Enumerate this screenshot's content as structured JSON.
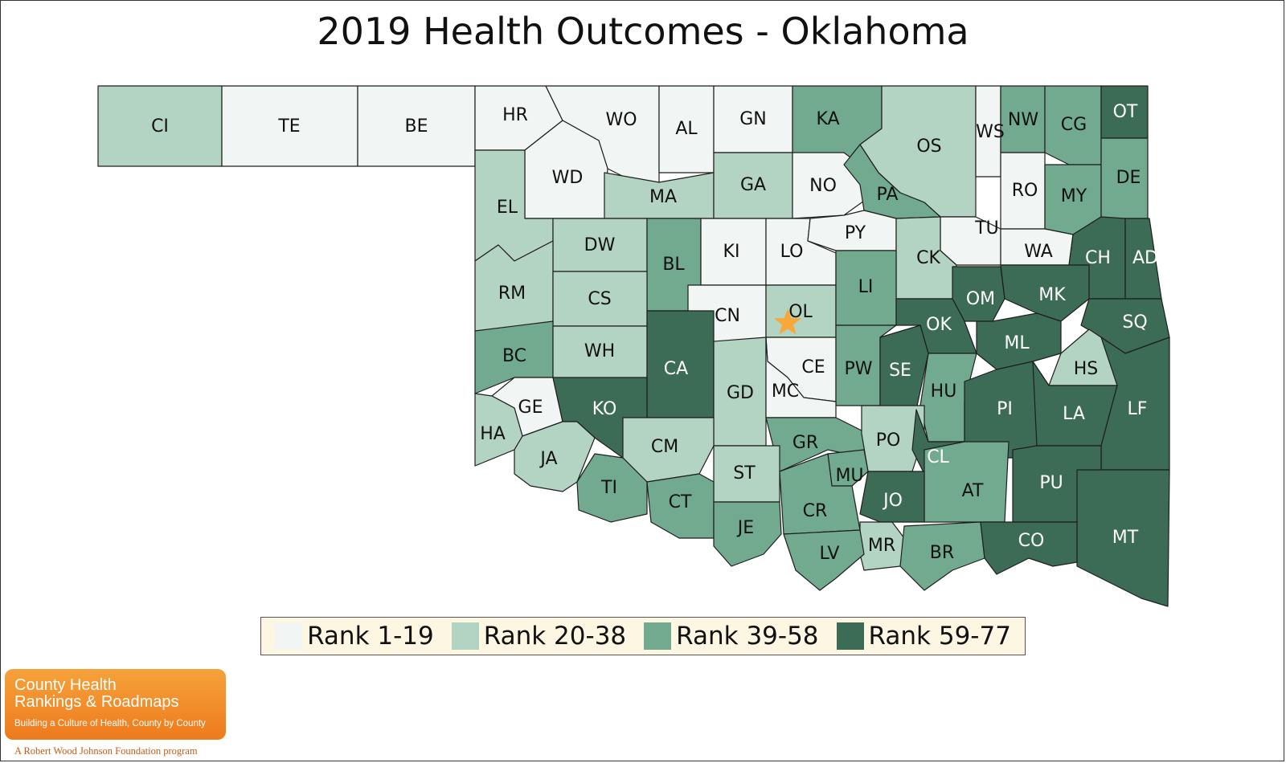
{
  "title": "2019 Health Outcomes - Oklahoma",
  "colors": {
    "rank_1_19": "#f1f5f3",
    "rank_20_38": "#b4d4c3",
    "rank_39_58": "#72aa8f",
    "rank_59_77": "#3c6b56",
    "star": "#f7a83a"
  },
  "legend": [
    {
      "label": "Rank 1-19",
      "color": "#f1f5f3"
    },
    {
      "label": "Rank 20-38",
      "color": "#b4d4c3"
    },
    {
      "label": "Rank 39-58",
      "color": "#72aa8f"
    },
    {
      "label": "Rank 59-77",
      "color": "#3c6b56"
    }
  ],
  "counties": [
    {
      "abbr": "CI",
      "rank_group": "20-38"
    },
    {
      "abbr": "TE",
      "rank_group": "1-19"
    },
    {
      "abbr": "BE",
      "rank_group": "1-19"
    },
    {
      "abbr": "HR",
      "rank_group": "1-19"
    },
    {
      "abbr": "WO",
      "rank_group": "1-19"
    },
    {
      "abbr": "AL",
      "rank_group": "1-19"
    },
    {
      "abbr": "GN",
      "rank_group": "1-19"
    },
    {
      "abbr": "KA",
      "rank_group": "39-58"
    },
    {
      "abbr": "OS",
      "rank_group": "20-38"
    },
    {
      "abbr": "WS",
      "rank_group": "1-19"
    },
    {
      "abbr": "NW",
      "rank_group": "39-58"
    },
    {
      "abbr": "CG",
      "rank_group": "39-58"
    },
    {
      "abbr": "OT",
      "rank_group": "59-77"
    },
    {
      "abbr": "WD",
      "rank_group": "1-19"
    },
    {
      "abbr": "MA",
      "rank_group": "20-38"
    },
    {
      "abbr": "GA",
      "rank_group": "20-38"
    },
    {
      "abbr": "NO",
      "rank_group": "1-19"
    },
    {
      "abbr": "PA",
      "rank_group": "39-58"
    },
    {
      "abbr": "RO",
      "rank_group": "1-19"
    },
    {
      "abbr": "MY",
      "rank_group": "39-58"
    },
    {
      "abbr": "DE",
      "rank_group": "39-58"
    },
    {
      "abbr": "EL",
      "rank_group": "20-38"
    },
    {
      "abbr": "DW",
      "rank_group": "20-38"
    },
    {
      "abbr": "BL",
      "rank_group": "39-58"
    },
    {
      "abbr": "KI",
      "rank_group": "1-19"
    },
    {
      "abbr": "LO",
      "rank_group": "1-19"
    },
    {
      "abbr": "PY",
      "rank_group": "1-19"
    },
    {
      "abbr": "TU",
      "rank_group": "1-19"
    },
    {
      "abbr": "WA",
      "rank_group": "1-19"
    },
    {
      "abbr": "CK",
      "rank_group": "20-38"
    },
    {
      "abbr": "CH",
      "rank_group": "59-77"
    },
    {
      "abbr": "AD",
      "rank_group": "59-77"
    },
    {
      "abbr": "RM",
      "rank_group": "20-38"
    },
    {
      "abbr": "CS",
      "rank_group": "20-38"
    },
    {
      "abbr": "CN",
      "rank_group": "1-19"
    },
    {
      "abbr": "OL",
      "rank_group": "20-38"
    },
    {
      "abbr": "LI",
      "rank_group": "39-58"
    },
    {
      "abbr": "OM",
      "rank_group": "59-77"
    },
    {
      "abbr": "MK",
      "rank_group": "59-77"
    },
    {
      "abbr": "OK",
      "rank_group": "59-77"
    },
    {
      "abbr": "SQ",
      "rank_group": "59-77"
    },
    {
      "abbr": "BC",
      "rank_group": "39-58"
    },
    {
      "abbr": "WH",
      "rank_group": "20-38"
    },
    {
      "abbr": "CA",
      "rank_group": "59-77"
    },
    {
      "abbr": "CE",
      "rank_group": "1-19"
    },
    {
      "abbr": "PW",
      "rank_group": "39-58"
    },
    {
      "abbr": "SE",
      "rank_group": "59-77"
    },
    {
      "abbr": "ML",
      "rank_group": "59-77"
    },
    {
      "abbr": "HS",
      "rank_group": "20-38"
    },
    {
      "abbr": "GE",
      "rank_group": "1-19"
    },
    {
      "abbr": "KO",
      "rank_group": "59-77"
    },
    {
      "abbr": "GD",
      "rank_group": "20-38"
    },
    {
      "abbr": "MC",
      "rank_group": "1-19"
    },
    {
      "abbr": "HU",
      "rank_group": "39-58"
    },
    {
      "abbr": "PI",
      "rank_group": "59-77"
    },
    {
      "abbr": "LA",
      "rank_group": "59-77"
    },
    {
      "abbr": "LF",
      "rank_group": "59-77"
    },
    {
      "abbr": "HA",
      "rank_group": "20-38"
    },
    {
      "abbr": "JA",
      "rank_group": "20-38"
    },
    {
      "abbr": "CM",
      "rank_group": "20-38"
    },
    {
      "abbr": "GR",
      "rank_group": "39-58"
    },
    {
      "abbr": "PO",
      "rank_group": "20-38"
    },
    {
      "abbr": "CL",
      "rank_group": "59-77"
    },
    {
      "abbr": "TI",
      "rank_group": "39-58"
    },
    {
      "abbr": "ST",
      "rank_group": "20-38"
    },
    {
      "abbr": "MU",
      "rank_group": "39-58"
    },
    {
      "abbr": "AT",
      "rank_group": "39-58"
    },
    {
      "abbr": "PU",
      "rank_group": "59-77"
    },
    {
      "abbr": "CT",
      "rank_group": "39-58"
    },
    {
      "abbr": "JE",
      "rank_group": "39-58"
    },
    {
      "abbr": "CR",
      "rank_group": "39-58"
    },
    {
      "abbr": "JO",
      "rank_group": "59-77"
    },
    {
      "abbr": "MR",
      "rank_group": "20-38"
    },
    {
      "abbr": "BR",
      "rank_group": "39-58"
    },
    {
      "abbr": "CO",
      "rank_group": "59-77"
    },
    {
      "abbr": "MT",
      "rank_group": "59-77"
    },
    {
      "abbr": "LV",
      "rank_group": "39-58"
    }
  ],
  "capital_marker": "star",
  "logo": {
    "line1": "County Health",
    "line2": "Rankings & Roadmaps",
    "tagline": "Building a Culture of Health, County by County",
    "program": "A Robert Wood Johnson Foundation program"
  }
}
